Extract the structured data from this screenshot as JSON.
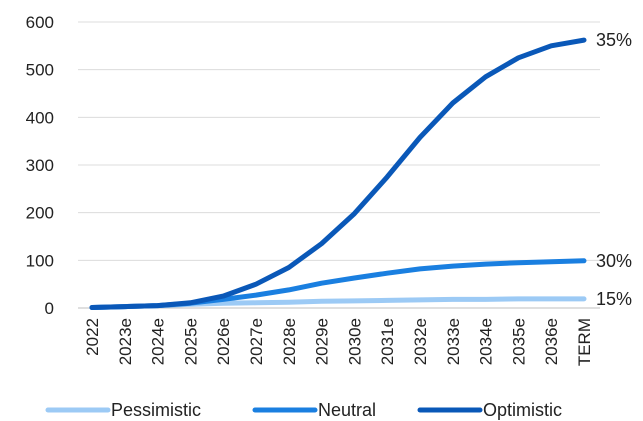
{
  "chart_data": {
    "type": "line",
    "categories": [
      "2022",
      "2023e",
      "2024e",
      "2025e",
      "2026e",
      "2027e",
      "2028e",
      "2029e",
      "2030e",
      "2031e",
      "2032e",
      "2033e",
      "2034e",
      "2035e",
      "2036e",
      "TERM"
    ],
    "ylim": [
      0,
      600
    ],
    "yticks": [
      0,
      100,
      200,
      300,
      400,
      500,
      600
    ],
    "grid": true,
    "legend": "bottom",
    "series": [
      {
        "name": "Pessimistic",
        "color": "#9ccaf5",
        "end_label": "15%",
        "values": [
          1,
          3,
          5,
          8,
          10,
          11,
          12,
          14,
          15,
          16,
          17,
          18,
          18,
          19,
          19,
          19
        ]
      },
      {
        "name": "Neutral",
        "color": "#1a7fe0",
        "end_label": "30%",
        "values": [
          1,
          3,
          5,
          10,
          18,
          27,
          38,
          52,
          63,
          73,
          82,
          88,
          92,
          95,
          97,
          99
        ]
      },
      {
        "name": "Optimistic",
        "color": "#0a58b8",
        "end_label": "35%",
        "values": [
          1,
          3,
          5,
          11,
          25,
          50,
          85,
          135,
          198,
          275,
          358,
          430,
          485,
          525,
          550,
          562
        ]
      }
    ]
  }
}
